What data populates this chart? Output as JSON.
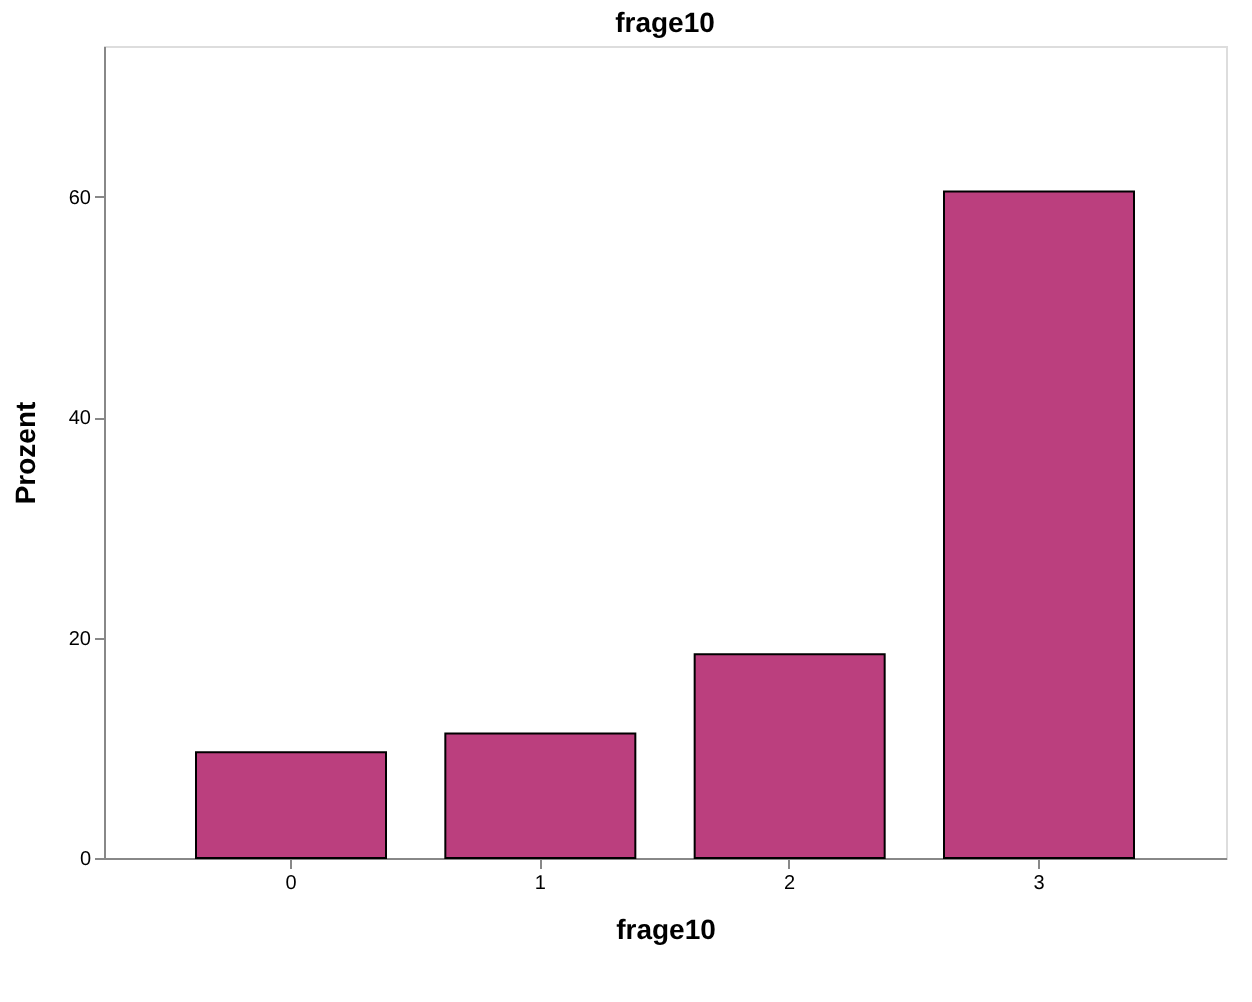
{
  "chart_data": {
    "type": "bar",
    "title": "frage10",
    "xlabel": "frage10",
    "ylabel": "Prozent",
    "categories": [
      "0",
      "1",
      "2",
      "3"
    ],
    "values": [
      9.6,
      11.3,
      18.5,
      60.5
    ],
    "color": "#bb3f7e",
    "ylim": [
      0,
      73.7
    ],
    "yticks": [
      0,
      20,
      40,
      60
    ],
    "grid": false
  }
}
